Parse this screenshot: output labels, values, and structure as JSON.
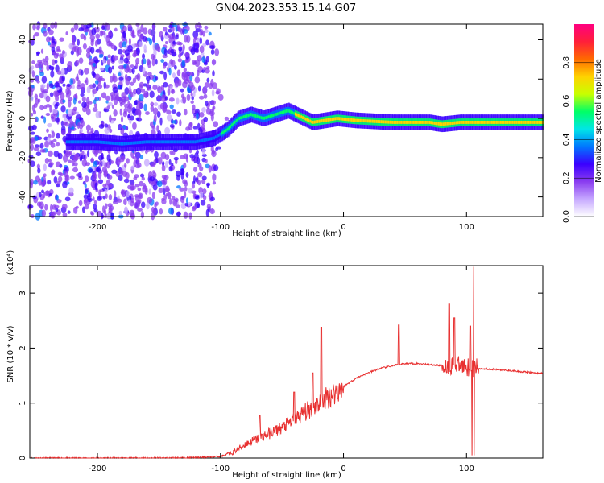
{
  "title": "GN04.2023.353.15.14.G07",
  "chart_data": [
    {
      "type": "heatmap",
      "xlabel": "Height of straight line (km)",
      "ylabel": "Frequency (Hz)",
      "xlim": [
        -255,
        162
      ],
      "ylim": [
        -50,
        48
      ],
      "xticks": [
        -200,
        -100,
        0,
        100
      ],
      "yticks": [
        -40,
        -20,
        0,
        20,
        40
      ],
      "colorbar": {
        "label": "Normalized spectral amplitude",
        "range": [
          0,
          1
        ],
        "ticks": [
          0.0,
          0.2,
          0.4,
          0.6,
          0.8
        ]
      },
      "colormap": [
        "#ffffff",
        "#c6a8ff",
        "#8a3cf0",
        "#3a00ff",
        "#0077ff",
        "#00e6e6",
        "#00ff66",
        "#c8ff00",
        "#ffd200",
        "#ff6a00",
        "#ff1f3a",
        "#ff0080"
      ],
      "ridge": [
        {
          "x": -200,
          "f": -12
        },
        {
          "x": -180,
          "f": -13
        },
        {
          "x": -160,
          "f": -12
        },
        {
          "x": -140,
          "f": -12
        },
        {
          "x": -120,
          "f": -12
        },
        {
          "x": -105,
          "f": -10
        },
        {
          "x": -95,
          "f": -6
        },
        {
          "x": -85,
          "f": 0
        },
        {
          "x": -75,
          "f": 2
        },
        {
          "x": -65,
          "f": 0
        },
        {
          "x": -55,
          "f": 2
        },
        {
          "x": -45,
          "f": 4
        },
        {
          "x": -35,
          "f": 1
        },
        {
          "x": -25,
          "f": -2
        },
        {
          "x": -15,
          "f": -1
        },
        {
          "x": -5,
          "f": 0
        },
        {
          "x": 10,
          "f": -1
        },
        {
          "x": 40,
          "f": -2
        },
        {
          "x": 70,
          "f": -2
        },
        {
          "x": 80,
          "f": -3
        },
        {
          "x": 95,
          "f": -2
        },
        {
          "x": 120,
          "f": -2
        },
        {
          "x": 162,
          "f": -2
        }
      ]
    },
    {
      "type": "line",
      "xlabel": "Height of straight line (km)",
      "ylabel": "SNR (10 * v/v)",
      "yscale_note": "(x10⁴)",
      "xlim": [
        -255,
        162
      ],
      "ylim": [
        0,
        3.5
      ],
      "xticks": [
        -200,
        -100,
        0,
        100
      ],
      "yticks": [
        0,
        1,
        2,
        3
      ],
      "color": "#e83030",
      "x": [
        -255,
        -200,
        -150,
        -120,
        -100,
        -90,
        -80,
        -70,
        -60,
        -50,
        -40,
        -30,
        -20,
        -10,
        0,
        10,
        20,
        30,
        40,
        50,
        60,
        70,
        80,
        90,
        100,
        105,
        110,
        130,
        150,
        162
      ],
      "y": [
        0.0,
        0.0,
        0.0,
        0.01,
        0.03,
        0.1,
        0.25,
        0.35,
        0.45,
        0.55,
        0.7,
        0.85,
        1.0,
        1.15,
        1.3,
        1.45,
        1.55,
        1.63,
        1.68,
        1.72,
        1.72,
        1.7,
        1.68,
        1.68,
        1.67,
        1.65,
        1.63,
        1.6,
        1.56,
        1.54
      ],
      "spikes": [
        {
          "x": -68,
          "y": 0.78
        },
        {
          "x": -40,
          "y": 1.2
        },
        {
          "x": -25,
          "y": 1.55
        },
        {
          "x": -18,
          "y": 2.38
        },
        {
          "x": 45,
          "y": 2.42
        },
        {
          "x": 86,
          "y": 2.8
        },
        {
          "x": 90,
          "y": 2.55
        },
        {
          "x": 103,
          "y": 2.4
        },
        {
          "x": 106,
          "y": 3.48
        }
      ]
    }
  ]
}
